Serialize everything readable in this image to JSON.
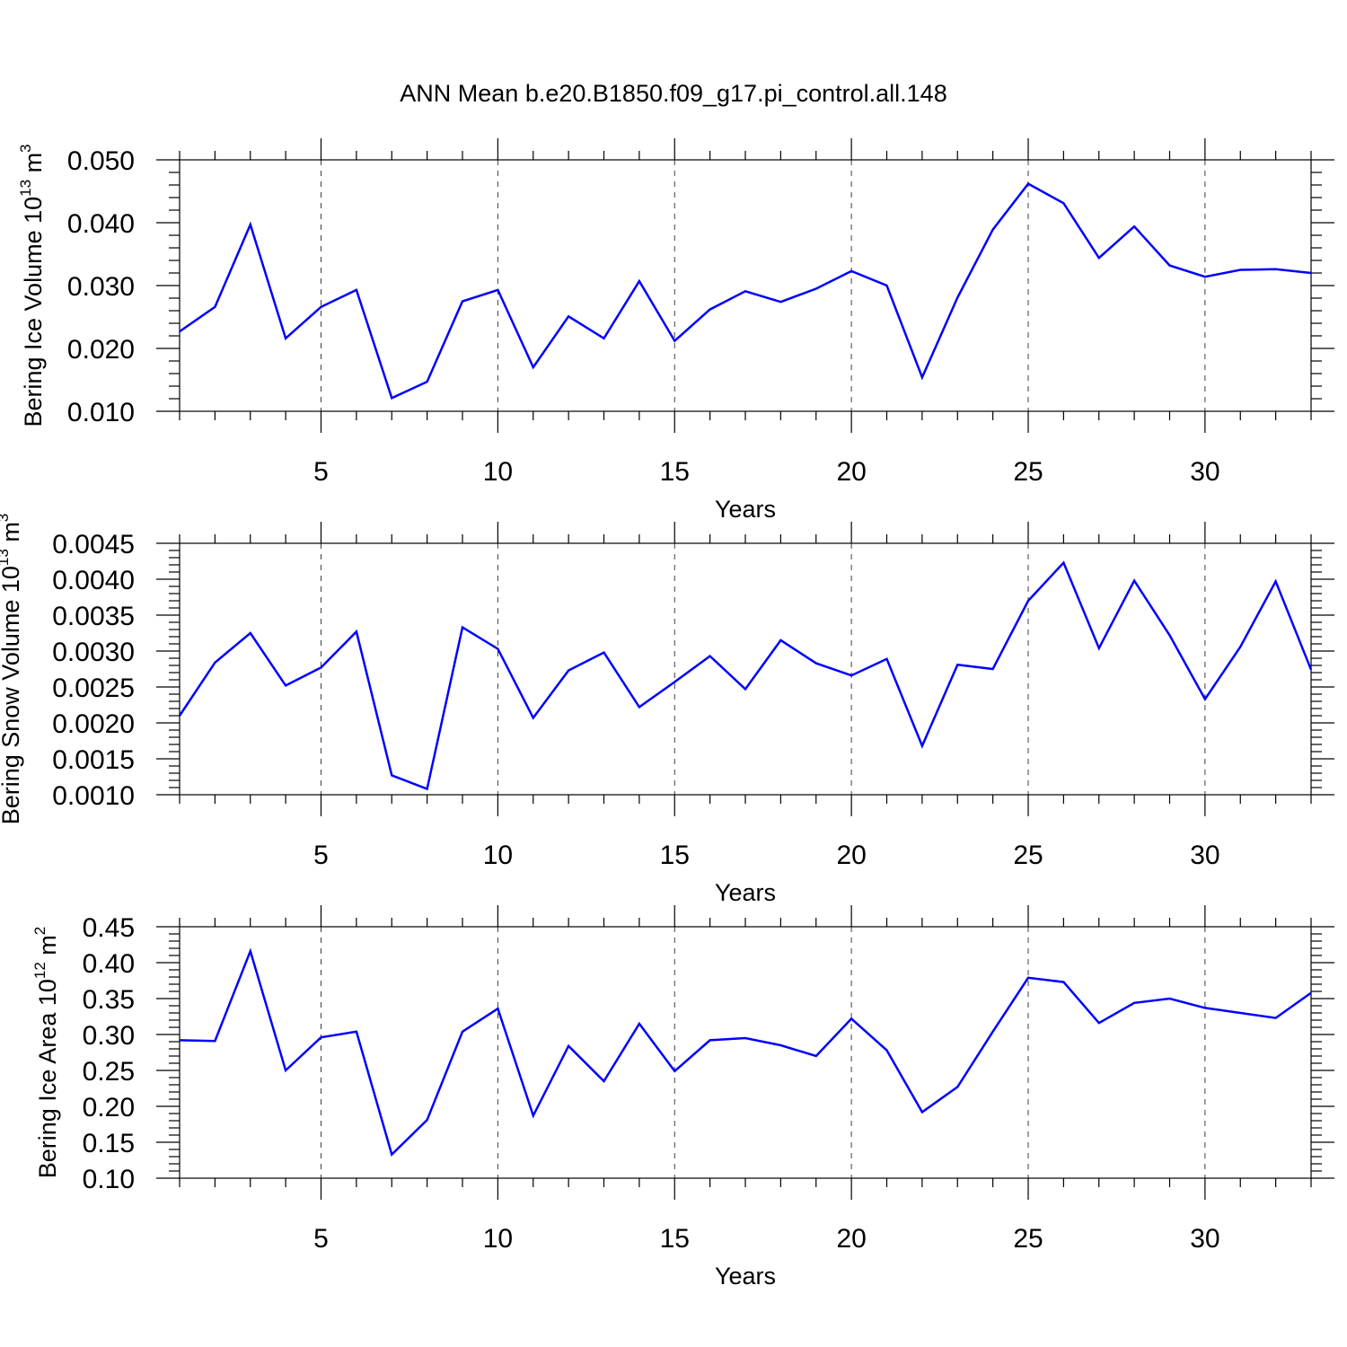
{
  "figure_title": "ANN Mean b.e20.B1850.f09_g17.pi_control.all.148",
  "chart_data": [
    {
      "type": "line",
      "title": "",
      "xlabel": "Years",
      "ylabel_main": "Bering Ice Volume 10",
      "ylabel_exp": "13",
      "ylabel_unit": "m",
      "ylabel_unit_exp": "3",
      "xlim": [
        1,
        33
      ],
      "ylim": [
        0.01,
        0.05
      ],
      "x_ticks": [
        5,
        10,
        15,
        20,
        25,
        30
      ],
      "x_tick_labels": [
        "5",
        "10",
        "15",
        "20",
        "25",
        "30"
      ],
      "y_ticks": [
        0.01,
        0.02,
        0.03,
        0.04,
        0.05
      ],
      "y_tick_labels": [
        "0.010",
        "0.020",
        "0.030",
        "0.040",
        "0.050"
      ],
      "color": "#0000ff",
      "grid": "vertical dashed at major x ticks",
      "x": [
        1,
        2,
        3,
        4,
        5,
        6,
        7,
        8,
        9,
        10,
        11,
        12,
        13,
        14,
        15,
        16,
        17,
        18,
        19,
        20,
        21,
        22,
        23,
        24,
        25,
        26,
        27,
        28,
        29,
        30,
        31,
        32,
        33
      ],
      "values": [
        0.0227,
        0.0266,
        0.0397,
        0.0216,
        0.0266,
        0.0293,
        0.0121,
        0.0147,
        0.0275,
        0.0293,
        0.017,
        0.0251,
        0.0216,
        0.0307,
        0.0212,
        0.0262,
        0.0291,
        0.0274,
        0.0295,
        0.0323,
        0.03,
        0.0154,
        0.0281,
        0.0389,
        0.0462,
        0.0431,
        0.0344,
        0.0394,
        0.0332,
        0.0314,
        0.0325,
        0.0326,
        0.032
      ]
    },
    {
      "type": "line",
      "title": "",
      "xlabel": "Years",
      "ylabel_main": "Bering Snow Volume 10",
      "ylabel_exp": "13",
      "ylabel_unit": "m",
      "ylabel_unit_exp": "3",
      "xlim": [
        1,
        33
      ],
      "ylim": [
        0.001,
        0.0045
      ],
      "x_ticks": [
        5,
        10,
        15,
        20,
        25,
        30
      ],
      "x_tick_labels": [
        "5",
        "10",
        "15",
        "20",
        "25",
        "30"
      ],
      "y_ticks": [
        0.001,
        0.0015,
        0.002,
        0.0025,
        0.003,
        0.0035,
        0.004,
        0.0045
      ],
      "y_tick_labels": [
        "0.0010",
        "0.0015",
        "0.0020",
        "0.0025",
        "0.0030",
        "0.0035",
        "0.0040",
        "0.0045"
      ],
      "color": "#0000ff",
      "grid": "vertical dashed at major x ticks",
      "x": [
        1,
        2,
        3,
        4,
        5,
        6,
        7,
        8,
        9,
        10,
        11,
        12,
        13,
        14,
        15,
        16,
        17,
        18,
        19,
        20,
        21,
        22,
        23,
        24,
        25,
        26,
        27,
        28,
        29,
        30,
        31,
        32,
        33
      ],
      "values": [
        0.0021,
        0.00284,
        0.00325,
        0.00252,
        0.00277,
        0.00327,
        0.00127,
        0.00108,
        0.00333,
        0.00303,
        0.00207,
        0.00273,
        0.00298,
        0.00222,
        0.00257,
        0.00293,
        0.00247,
        0.00315,
        0.00283,
        0.00266,
        0.00289,
        0.00168,
        0.00281,
        0.00275,
        0.0037,
        0.00423,
        0.00304,
        0.00398,
        0.00322,
        0.00233,
        0.00306,
        0.00397,
        0.00274
      ]
    },
    {
      "type": "line",
      "title": "",
      "xlabel": "Years",
      "ylabel_main": "Bering Ice Area 10",
      "ylabel_exp": "12",
      "ylabel_unit": "m",
      "ylabel_unit_exp": "2",
      "xlim": [
        1,
        33
      ],
      "ylim": [
        0.1,
        0.45
      ],
      "x_ticks": [
        5,
        10,
        15,
        20,
        25,
        30
      ],
      "x_tick_labels": [
        "5",
        "10",
        "15",
        "20",
        "25",
        "30"
      ],
      "y_ticks": [
        0.1,
        0.15,
        0.2,
        0.25,
        0.3,
        0.35,
        0.4,
        0.45
      ],
      "y_tick_labels": [
        "0.10",
        "0.15",
        "0.20",
        "0.25",
        "0.30",
        "0.35",
        "0.40",
        "0.45"
      ],
      "color": "#0000ff",
      "grid": "vertical dashed at major x ticks",
      "x": [
        1,
        2,
        3,
        4,
        5,
        6,
        7,
        8,
        9,
        10,
        11,
        12,
        13,
        14,
        15,
        16,
        17,
        18,
        19,
        20,
        21,
        22,
        23,
        24,
        25,
        26,
        27,
        28,
        29,
        30,
        31,
        32,
        33
      ],
      "values": [
        0.292,
        0.291,
        0.416,
        0.25,
        0.296,
        0.304,
        0.133,
        0.181,
        0.304,
        0.336,
        0.187,
        0.284,
        0.235,
        0.315,
        0.249,
        0.292,
        0.295,
        0.285,
        0.27,
        0.322,
        0.278,
        0.192,
        0.227,
        0.304,
        0.379,
        0.373,
        0.316,
        0.344,
        0.35,
        0.337,
        0.33,
        0.323,
        0.358
      ]
    }
  ]
}
